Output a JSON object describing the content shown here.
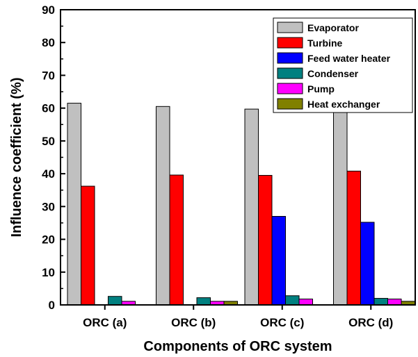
{
  "chart_data": {
    "type": "bar",
    "xlabel": "Components of ORC system",
    "ylabel": "Influence coefficient (%)",
    "ylim": [
      0,
      90
    ],
    "yticks": [
      0,
      10,
      20,
      30,
      40,
      50,
      60,
      70,
      80,
      90
    ],
    "categories": [
      "ORC (a)",
      "ORC (b)",
      "ORC (c)",
      "ORC (d)"
    ],
    "legend_position": "top-right",
    "grid": false,
    "series": [
      {
        "name": "Evaporator",
        "color": "#c0c0c0",
        "values": [
          61.5,
          60.5,
          59.7,
          59.0
        ]
      },
      {
        "name": "Turbine",
        "color": "#ff0000",
        "values": [
          36.2,
          39.6,
          39.5,
          40.8
        ]
      },
      {
        "name": "Feed water heater",
        "color": "#0000ff",
        "values": [
          0,
          0,
          27.0,
          25.2
        ]
      },
      {
        "name": "Condenser",
        "color": "#008080",
        "values": [
          2.6,
          2.2,
          2.8,
          2.0
        ]
      },
      {
        "name": "Pump",
        "color": "#ff00ff",
        "values": [
          1.1,
          1.1,
          1.8,
          1.8
        ]
      },
      {
        "name": "Heat exchanger",
        "color": "#808000",
        "values": [
          0,
          1.1,
          0,
          1.1
        ]
      }
    ]
  }
}
